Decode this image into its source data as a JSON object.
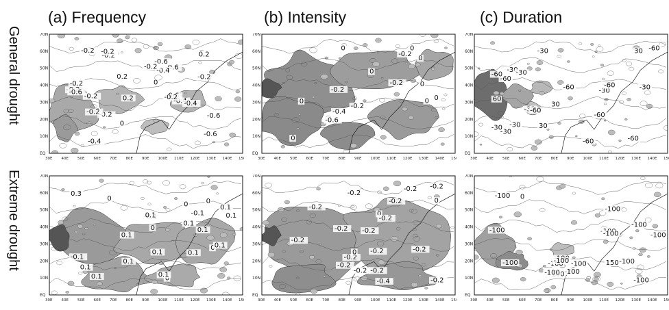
{
  "columns": [
    {
      "id": "a",
      "title": "(a) Frequency"
    },
    {
      "id": "b",
      "title": "(b) Intensity"
    },
    {
      "id": "c",
      "title": "(c) Duration"
    }
  ],
  "rows": [
    {
      "id": "general",
      "label": "General drought"
    },
    {
      "id": "extreme",
      "label": "Extreme drought"
    }
  ],
  "axes": {
    "lat_ticks": [
      "70N",
      "60N",
      "50N",
      "40N",
      "30N",
      "20N",
      "10N",
      "EQ"
    ],
    "lon_ticks": [
      "30E",
      "40E",
      "50E",
      "60E",
      "70E",
      "80E",
      "90E",
      "100E",
      "110E",
      "120E",
      "130E",
      "140E",
      "150E"
    ]
  },
  "panels": {
    "general_a": {
      "labels": [
        "-0.6",
        "-0.6",
        "-0.6",
        "-0.2",
        "-0.4",
        "-0.2",
        "-0.2",
        "-0.6",
        "-0.4",
        "-0.6",
        "-0.2",
        "-0.4",
        "0.2",
        "-0.4",
        "-0.6",
        "-0.2",
        "0.2",
        "-0.2",
        "0",
        "-0.2",
        "-0.2",
        "-0.2",
        "0",
        "-0.2",
        "0.2",
        "-0.2"
      ]
    },
    "general_b": {
      "labels": [
        "0",
        "0",
        "0",
        "0",
        "-0.2",
        "-0.6",
        "-0.4",
        "-0.2",
        "-0.2",
        "0",
        "0",
        "0",
        "-0.2",
        "0",
        "0"
      ]
    },
    "general_c": {
      "labels": [
        "60",
        "-60",
        "-60",
        "-60",
        "-30",
        "-30",
        "30",
        "-30",
        "-30",
        "-30",
        "-30",
        "30",
        "-60",
        "-30",
        "-60",
        "30",
        "-30",
        "-60",
        "-30",
        "-30",
        "-60",
        "-60",
        "-60"
      ]
    },
    "extreme_a": {
      "labels": [
        "-0.1",
        "-0.1",
        "-0.1",
        "0",
        "0",
        "0.1",
        "0.1",
        "0.1",
        "0",
        "0.3",
        "0.1",
        "0.1",
        "0",
        "0.1",
        "0.1",
        "0.1",
        "0.1",
        "0.1",
        "0.1",
        "0.1",
        "0.1",
        "0",
        "0"
      ]
    },
    "extreme_b": {
      "labels": [
        "0",
        "-0.2",
        "0",
        "-0.2",
        "0",
        "-0.2",
        "-0.2",
        "-0.2",
        "-0.2",
        "-0.2",
        "-0.2",
        "-0.4",
        "-0.2",
        "-0.2",
        "-0.2",
        "-0.2",
        "-0.2",
        "-0.2",
        "-0.2",
        "-0.2"
      ]
    },
    "extreme_c": {
      "labels": [
        "0",
        "-100",
        "-100",
        "-100",
        "-100",
        "-100",
        "-100",
        "-100",
        "-100",
        "-100",
        "-100",
        "150",
        "-100",
        "-100",
        "-100",
        "-100",
        "-100",
        "-100",
        "-100"
      ]
    }
  }
}
